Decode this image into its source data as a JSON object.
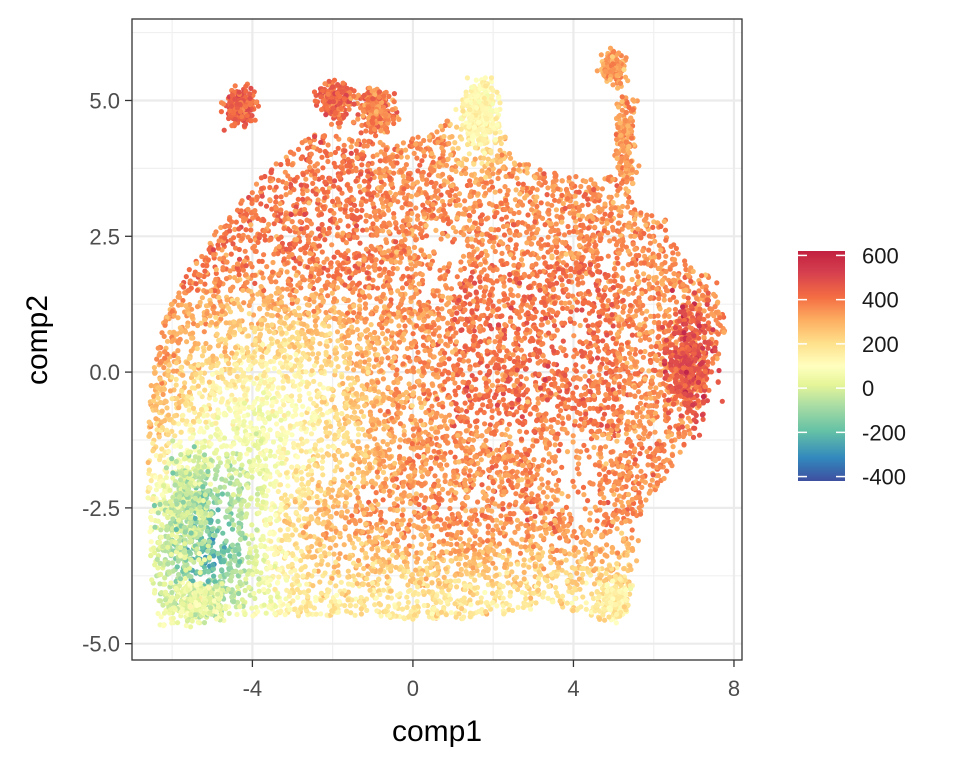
{
  "chart_data": {
    "type": "scatter",
    "title": "",
    "xlabel": "comp1",
    "ylabel": "comp2",
    "xlim": [
      -7.0,
      8.2
    ],
    "ylim": [
      -5.3,
      6.5
    ],
    "x_ticks": [
      -4,
      0,
      4,
      8
    ],
    "x_tick_labels": [
      "-4",
      "0",
      "4",
      "8"
    ],
    "y_ticks": [
      -5.0,
      -2.5,
      0.0,
      2.5,
      5.0
    ],
    "y_tick_labels": [
      "-5.0",
      "-2.5",
      "0.0",
      "2.5",
      "5.0"
    ],
    "grid": true,
    "theme": "bw",
    "color_scale": {
      "type": "continuous",
      "palette": "Spectral",
      "range": [
        -420,
        620
      ],
      "breaks": [
        600,
        400,
        200,
        0,
        -200,
        -400
      ],
      "break_labels": [
        "600",
        "400",
        "200",
        "0",
        "-200",
        "-400"
      ],
      "colors": [
        "#5e4fa2",
        "#3288bd",
        "#66c2a5",
        "#abdda4",
        "#e6f598",
        "#ffffbf",
        "#fee08b",
        "#fdae61",
        "#f46d43",
        "#d53e4f",
        "#9e0142"
      ],
      "legend_position": "right"
    },
    "point_regions": [
      {
        "region": "lower-left green/blue cluster",
        "x_range": [
          -6.5,
          -3.0
        ],
        "y_range": [
          -4.8,
          -1.0
        ],
        "value_range": [
          -400,
          100
        ]
      },
      {
        "region": "left yellow band",
        "x_range": [
          -6.5,
          -2.0
        ],
        "y_range": [
          -1.0,
          1.5
        ],
        "value_range": [
          0,
          250
        ]
      },
      {
        "region": "upper-left orange mass",
        "x_range": [
          -5.5,
          -1.0
        ],
        "y_range": [
          1.0,
          4.0
        ],
        "value_range": [
          250,
          500
        ]
      },
      {
        "region": "central orange mass",
        "x_range": [
          -1.0,
          6.5
        ],
        "y_range": [
          -3.0,
          3.0
        ],
        "value_range": [
          250,
          550
        ]
      },
      {
        "region": "bottom yellow band",
        "x_range": [
          -2.0,
          5.5
        ],
        "y_range": [
          -4.6,
          -2.5
        ],
        "value_range": [
          50,
          300
        ]
      },
      {
        "region": "top-left lobe",
        "x_range": [
          -4.8,
          -3.8
        ],
        "y_range": [
          4.3,
          5.6
        ],
        "value_range": [
          300,
          550
        ]
      },
      {
        "region": "top-middle lobes",
        "x_range": [
          -2.5,
          0.5
        ],
        "y_range": [
          4.0,
          5.6
        ],
        "value_range": [
          300,
          600
        ]
      },
      {
        "region": "top green peak",
        "x_range": [
          1.0,
          2.3
        ],
        "y_range": [
          3.8,
          5.6
        ],
        "value_range": [
          50,
          250
        ]
      },
      {
        "region": "top-right strand",
        "x_range": [
          4.4,
          5.6
        ],
        "y_range": [
          2.5,
          6.1
        ],
        "value_range": [
          250,
          500
        ]
      },
      {
        "region": "right lobe",
        "x_range": [
          5.5,
          7.8
        ],
        "y_range": [
          -2.0,
          1.9
        ],
        "value_range": [
          300,
          600
        ]
      }
    ],
    "n_points_approx": 20000
  }
}
